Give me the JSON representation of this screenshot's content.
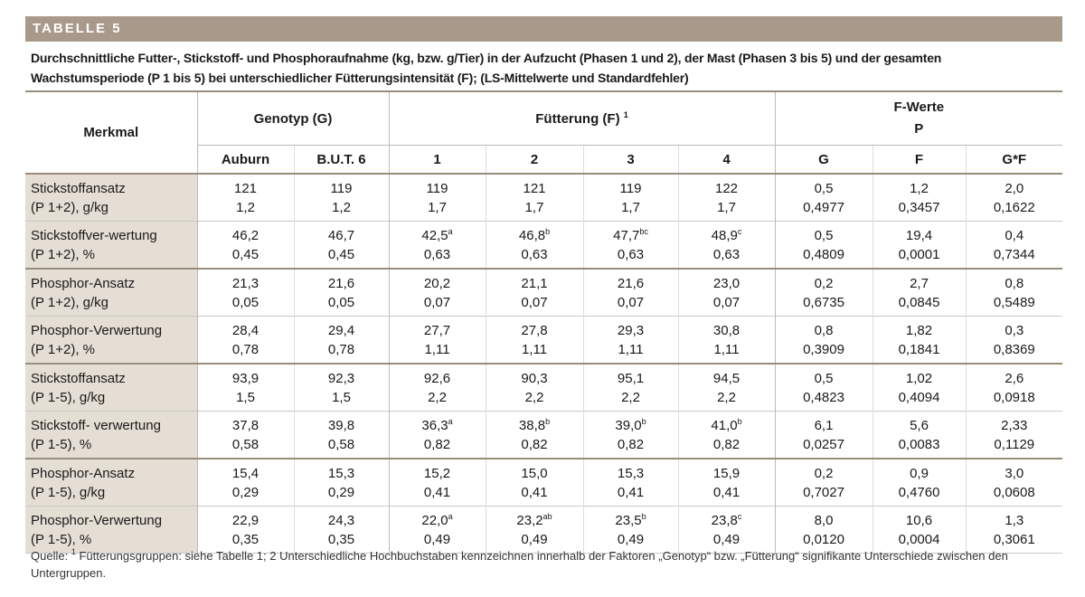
{
  "header": {
    "label": "TABELLE 5",
    "caption": "Durchschnittliche Futter-, Stickstoff- und Phosphoraufnahme (kg, bzw. g/Tier) in der Aufzucht (Phasen 1 und 2), der Mast (Phasen 3 bis 5) und der gesamten Wachstumsperiode (P 1 bis 5) bei unterschiedlicher Fütterungsintensität (F); (LS-Mittelwerte und Standardfehler)"
  },
  "table": {
    "merkmal": "Merkmal",
    "groups": [
      {
        "title": "Genotyp (G)"
      },
      {
        "title": "Fütterung (F)",
        "sup": "1"
      },
      {
        "title": "F-Werte",
        "subtitle": "P"
      }
    ],
    "columns": [
      "Auburn",
      "B.U.T. 6",
      "1",
      "2",
      "3",
      "4",
      "G",
      "F",
      "G*F"
    ],
    "rows": [
      {
        "label": [
          "Stickstoffansatz",
          "(P 1+2), g/kg"
        ],
        "cells": [
          {
            "mean": "121",
            "se": "1,2"
          },
          {
            "mean": "119",
            "se": "1,2"
          },
          {
            "mean": "119",
            "se": "1,7"
          },
          {
            "mean": "121",
            "se": "1,7"
          },
          {
            "mean": "119",
            "se": "1,7"
          },
          {
            "mean": "122",
            "se": "1,7"
          },
          {
            "mean": "0,5",
            "se": "0,4977"
          },
          {
            "mean": "1,2",
            "se": "0,3457"
          },
          {
            "mean": "2,0",
            "se": "0,1622"
          }
        ]
      },
      {
        "label": [
          "Stickstoffver-wertung",
          "(P 1+2), %"
        ],
        "cells": [
          {
            "mean": "46,2",
            "se": "0,45"
          },
          {
            "mean": "46,7",
            "se": "0,45"
          },
          {
            "mean": "42,5",
            "sup": "a",
            "se": "0,63"
          },
          {
            "mean": "46,8",
            "sup": "b",
            "se": "0,63"
          },
          {
            "mean": "47,7",
            "sup": "bc",
            "se": "0,63"
          },
          {
            "mean": "48,9",
            "sup": "c",
            "se": "0,63"
          },
          {
            "mean": "0,5",
            "se": "0,4809"
          },
          {
            "mean": "19,4",
            "se": "0,0001"
          },
          {
            "mean": "0,4",
            "se": "0,7344"
          }
        ]
      },
      {
        "label": [
          "Phosphor-Ansatz",
          "(P 1+2), g/kg"
        ],
        "cells": [
          {
            "mean": "21,3",
            "se": "0,05"
          },
          {
            "mean": "21,6",
            "se": "0,05"
          },
          {
            "mean": "20,2",
            "se": "0,07"
          },
          {
            "mean": "21,1",
            "se": "0,07"
          },
          {
            "mean": "21,6",
            "se": "0,07"
          },
          {
            "mean": "23,0",
            "se": "0,07"
          },
          {
            "mean": "0,2",
            "se": "0,6735"
          },
          {
            "mean": "2,7",
            "se": "0,0845"
          },
          {
            "mean": "0,8",
            "se": "0,5489"
          }
        ]
      },
      {
        "label": [
          "Phosphor-Verwertung",
          "(P 1+2), %"
        ],
        "cells": [
          {
            "mean": "28,4",
            "se": "0,78"
          },
          {
            "mean": "29,4",
            "se": "0,78"
          },
          {
            "mean": "27,7",
            "se": "1,11"
          },
          {
            "mean": "27,8",
            "se": "1,11"
          },
          {
            "mean": "29,3",
            "se": "1,11"
          },
          {
            "mean": "30,8",
            "se": "1,11"
          },
          {
            "mean": "0,8",
            "se": "0,3909"
          },
          {
            "mean": "1,82",
            "se": "0,1841"
          },
          {
            "mean": "0,3",
            "se": "0,8369"
          }
        ]
      },
      {
        "label": [
          "Stickstoffansatz",
          "(P 1-5), g/kg"
        ],
        "cells": [
          {
            "mean": "93,9",
            "se": "1,5"
          },
          {
            "mean": "92,3",
            "se": "1,5"
          },
          {
            "mean": "92,6",
            "se": "2,2"
          },
          {
            "mean": "90,3",
            "se": "2,2"
          },
          {
            "mean": "95,1",
            "se": "2,2"
          },
          {
            "mean": "94,5",
            "se": "2,2"
          },
          {
            "mean": "0,5",
            "se": "0,4823"
          },
          {
            "mean": "1,02",
            "se": "0,4094"
          },
          {
            "mean": "2,6",
            "se": "0,0918"
          }
        ]
      },
      {
        "label": [
          "Stickstoff- verwertung",
          "(P 1-5), %"
        ],
        "cells": [
          {
            "mean": "37,8",
            "se": "0,58"
          },
          {
            "mean": "39,8",
            "se": "0,58"
          },
          {
            "mean": "36,3",
            "sup": "a",
            "se": "0,82"
          },
          {
            "mean": "38,8",
            "sup": "b",
            "se": "0,82"
          },
          {
            "mean": "39,0",
            "sup": "b",
            "se": "0,82"
          },
          {
            "mean": "41,0",
            "sup": "b",
            "se": "0,82"
          },
          {
            "mean": "6,1",
            "se": "0,0257"
          },
          {
            "mean": "5,6",
            "se": "0,0083"
          },
          {
            "mean": "2,33",
            "se": "0,1129"
          }
        ]
      },
      {
        "label": [
          "Phosphor-Ansatz",
          "(P 1-5), g/kg"
        ],
        "cells": [
          {
            "mean": "15,4",
            "se": "0,29"
          },
          {
            "mean": "15,3",
            "se": "0,29"
          },
          {
            "mean": "15,2",
            "se": "0,41"
          },
          {
            "mean": "15,0",
            "se": "0,41"
          },
          {
            "mean": "15,3",
            "se": "0,41"
          },
          {
            "mean": "15,9",
            "se": "0,41"
          },
          {
            "mean": "0,2",
            "se": "0,7027"
          },
          {
            "mean": "0,9",
            "se": "0,4760"
          },
          {
            "mean": "3,0",
            "se": "0,0608"
          }
        ]
      },
      {
        "label": [
          "Phosphor-Verwertung",
          "(P 1-5), %"
        ],
        "cells": [
          {
            "mean": "22,9",
            "se": "0,35"
          },
          {
            "mean": "24,3",
            "se": "0,35"
          },
          {
            "mean": "22,0",
            "sup": "a",
            "se": "0,49"
          },
          {
            "mean": "23,2",
            "sup": "ab",
            "se": "0,49"
          },
          {
            "mean": "23,5",
            "sup": "b",
            "se": "0,49"
          },
          {
            "mean": "23,8",
            "sup": "c",
            "se": "0,49"
          },
          {
            "mean": "8,0",
            "se": "0,0120"
          },
          {
            "mean": "10,6",
            "se": "0,0004"
          },
          {
            "mean": "1,3",
            "se": "0,3061"
          }
        ]
      }
    ]
  },
  "footnote": {
    "prefix": "Quelle:",
    "sup": "1",
    "text": "Fütterungsgruppen: siehe Tabelle 1; 2 Unterschiedliche Hochbuchstaben kennzeichnen innerhalb der Faktoren „Genotyp“ bzw. „Fütterung“ signifikante Unterschiede zwischen den Untergruppen."
  }
}
